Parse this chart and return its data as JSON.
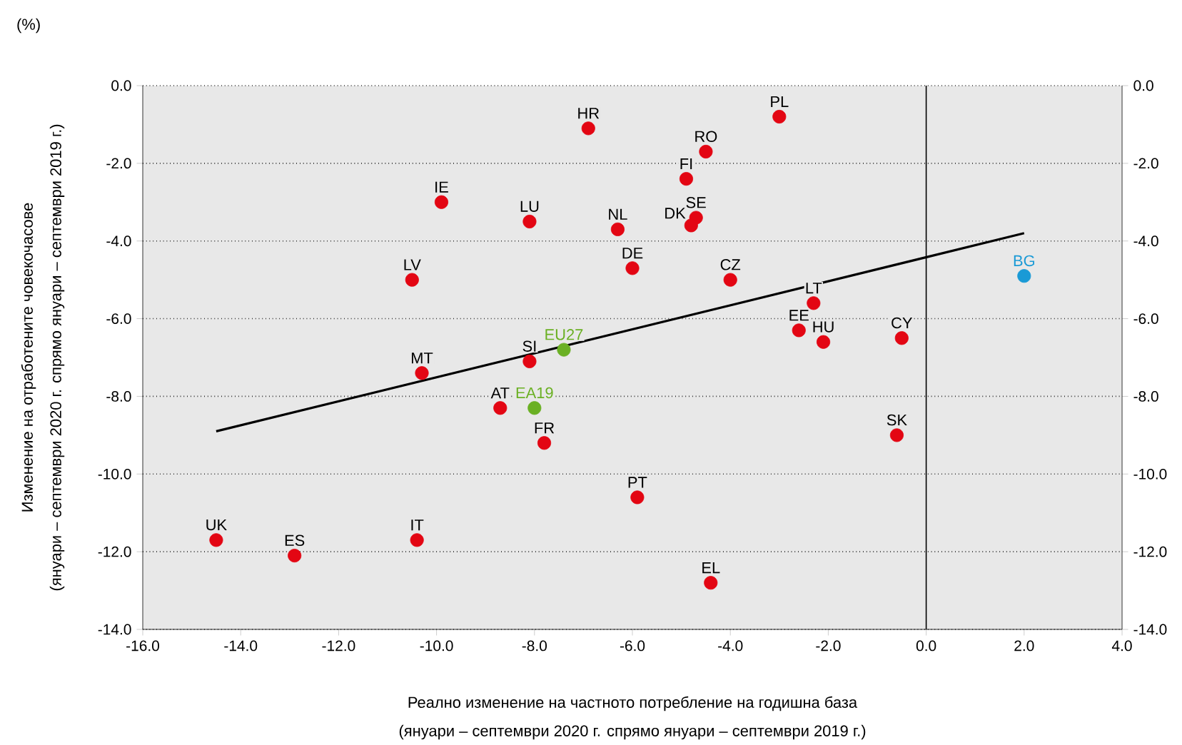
{
  "chart_data": {
    "type": "scatter",
    "xlabel": "Реално изменение на частното потребление на годишна база",
    "ylabel": "Изменение на отработените човекочасове",
    "annotations": [
      "(%)",
      "(януари – септември 2020 г. спрямо януари – септември 2019 г.)",
      "(януари – септември 2020 г. спрямо януари – септември 2019 г.)",
      {
        "text": "PL",
        "x": -3.0,
        "y": -0.8
      },
      {
        "text": "HR",
        "x": -6.9,
        "y": -1.1
      },
      {
        "text": "RO",
        "x": -4.5,
        "y": -1.7
      },
      {
        "text": "FI",
        "x": -4.9,
        "y": -2.4
      },
      {
        "text": "SE",
        "x": -4.7,
        "y": -3.4
      },
      {
        "text": "DK",
        "x": -4.8,
        "y": -3.6
      },
      {
        "text": "IE",
        "x": -9.9,
        "y": -3.0
      },
      {
        "text": "LU",
        "x": -8.1,
        "y": -3.5
      },
      {
        "text": "NL",
        "x": -6.3,
        "y": -3.7
      },
      {
        "text": "DE",
        "x": -6.0,
        "y": -4.7
      },
      {
        "text": "CZ",
        "x": -4.0,
        "y": -5.0
      },
      {
        "text": "LV",
        "x": -10.5,
        "y": -5.0
      },
      {
        "text": "LT",
        "x": -2.3,
        "y": -5.6
      },
      {
        "text": "EE",
        "x": -2.6,
        "y": -6.3
      },
      {
        "text": "HU",
        "x": -2.1,
        "y": -6.6
      },
      {
        "text": "CY",
        "x": -0.5,
        "y": -6.5
      },
      {
        "text": "SI",
        "x": -8.1,
        "y": -7.1
      },
      {
        "text": "MT",
        "x": -10.3,
        "y": -7.4
      },
      {
        "text": "AT",
        "x": -8.7,
        "y": -8.3
      },
      {
        "text": "FR",
        "x": -7.8,
        "y": -9.2
      },
      {
        "text": "SK",
        "x": -0.6,
        "y": -9.0
      },
      {
        "text": "PT",
        "x": -5.9,
        "y": -10.6
      },
      {
        "text": "UK",
        "x": -14.5,
        "y": -11.7
      },
      {
        "text": "ES",
        "x": -12.9,
        "y": -12.1
      },
      {
        "text": "IT",
        "x": -10.4,
        "y": -11.7
      },
      {
        "text": "EL",
        "x": -4.4,
        "y": -12.8
      },
      {
        "text": "EU27",
        "x": -7.4,
        "y": -6.8
      },
      {
        "text": "EA19",
        "x": -8.0,
        "y": -8.3
      },
      {
        "text": "BG",
        "x": 2.0,
        "y": -4.9
      }
    ],
    "series": [
      {
        "marker": "circle",
        "color": "#e30613",
        "x": [
          -3.0,
          -6.9,
          -4.5,
          -4.9,
          -4.7,
          -4.8,
          -9.9,
          -8.1,
          -6.3,
          -6.0,
          -4.0,
          -10.5,
          -2.3,
          -2.6,
          -2.1,
          -0.5,
          -8.1,
          -10.3,
          -8.7,
          -7.8,
          -0.6,
          -5.9,
          -14.5,
          -12.9,
          -10.4,
          -4.4
        ],
        "values": [
          -0.8,
          -1.1,
          -1.7,
          -2.4,
          -3.4,
          -3.6,
          -3.0,
          -3.5,
          -3.7,
          -4.7,
          -5.0,
          -5.0,
          -5.6,
          -6.3,
          -6.6,
          -6.5,
          -7.1,
          -7.4,
          -8.3,
          -9.2,
          -9.0,
          -10.6,
          -11.7,
          -12.1,
          -11.7,
          -12.8
        ]
      },
      {
        "marker": "circle",
        "color": "#6ab023",
        "x": [
          -7.4,
          -8.0
        ],
        "values": [
          -6.8,
          -8.3
        ]
      },
      {
        "marker": "circle",
        "color": "#1a9ad6",
        "x": [
          2.0
        ],
        "values": [
          -4.9
        ]
      },
      {
        "type": "line",
        "marker": "none",
        "color": "#000000",
        "x": [
          -14.5,
          2.0
        ],
        "values": [
          -8.9,
          -3.8
        ]
      }
    ],
    "xlim": [
      -16,
      4
    ],
    "xticks": [
      {
        "value": -16,
        "label": "-16.0"
      },
      {
        "value": -14,
        "label": "-14.0"
      },
      {
        "value": -12,
        "label": "-12.0"
      },
      {
        "value": -10,
        "label": "-10.0"
      },
      {
        "value": -8,
        "label": "-8.0"
      },
      {
        "value": -6,
        "label": "-6.0"
      },
      {
        "value": -4,
        "label": "-4.0"
      },
      {
        "value": -2,
        "label": "-2.0"
      },
      {
        "value": 0,
        "label": "0.0"
      },
      {
        "value": 2,
        "label": "2.0"
      },
      {
        "value": 4,
        "label": "4.0"
      }
    ],
    "ylim": [
      -14,
      0
    ],
    "yticks": [
      {
        "value": -14,
        "label": "-14.0"
      },
      {
        "value": -12,
        "label": "-12.0"
      },
      {
        "value": -10,
        "label": "-10.0"
      },
      {
        "value": -8,
        "label": "-8.0"
      },
      {
        "value": -6,
        "label": "-6.0"
      },
      {
        "value": -4,
        "label": "-4.0"
      },
      {
        "value": -2,
        "label": "-2.0"
      },
      {
        "value": 0,
        "label": "0.0"
      }
    ],
    "y2lim": [
      -14,
      0
    ],
    "y2ticks": [
      {
        "value": -14,
        "label": "-14.0"
      },
      {
        "value": -12,
        "label": "-12.0"
      },
      {
        "value": -10,
        "label": "-10.0"
      },
      {
        "value": -8,
        "label": "-8.0"
      },
      {
        "value": -6,
        "label": "-6.0"
      },
      {
        "value": -4,
        "label": "-4.0"
      },
      {
        "value": -2,
        "label": "-2.0"
      },
      {
        "value": 0,
        "label": "0.0"
      }
    ],
    "ref_lines": [
      {
        "axis": "x",
        "value": 0,
        "color": "#000000"
      }
    ],
    "grid": "y"
  }
}
